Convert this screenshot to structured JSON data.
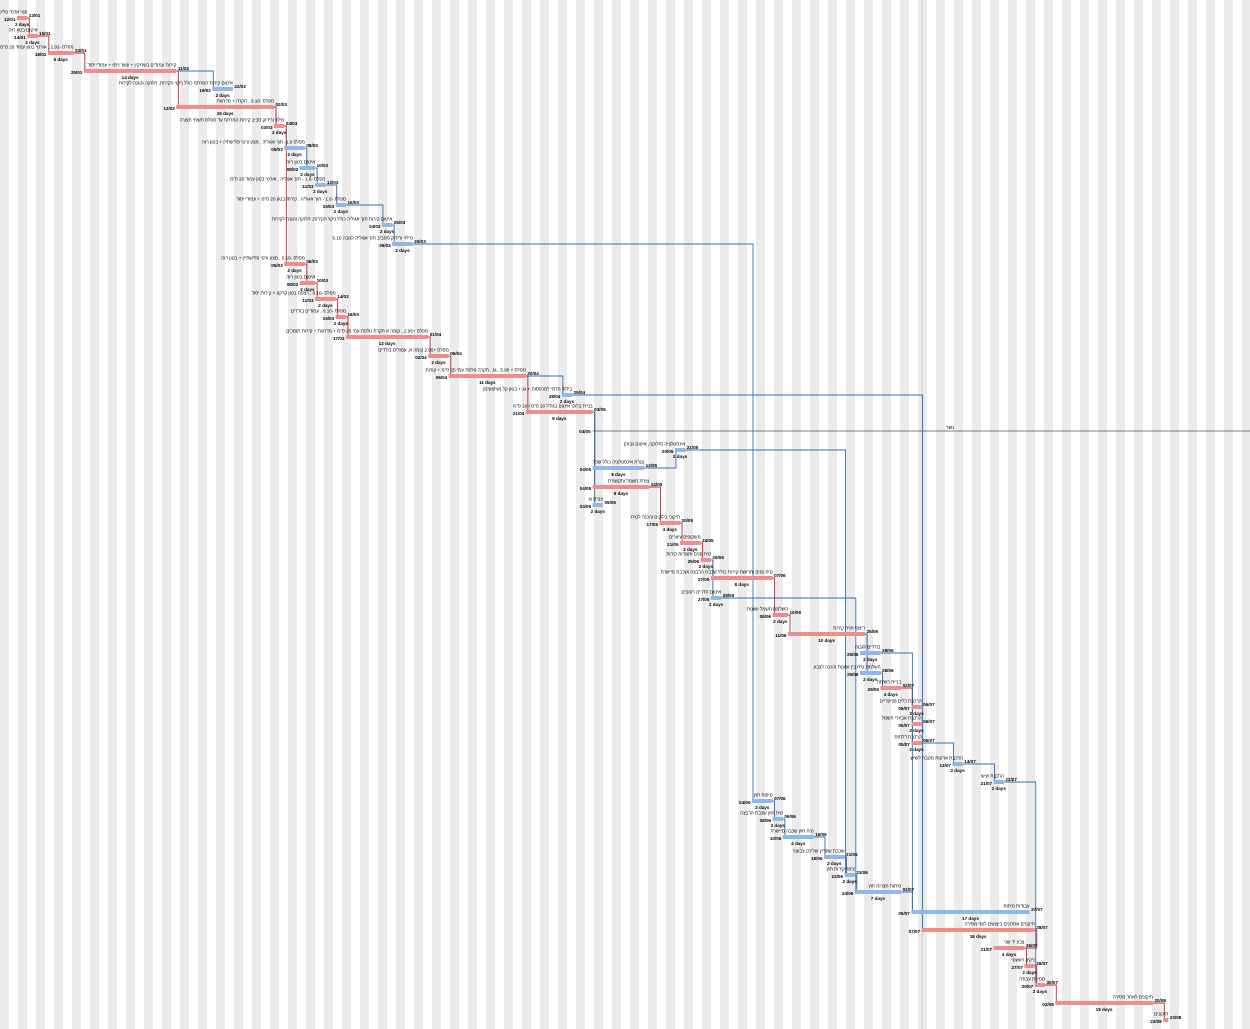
{
  "chart_data": {
    "type": "gantt",
    "colors": {
      "critical": "#f08c8c",
      "normal": "#8db8e8",
      "critical_link": "#c0282d",
      "normal_link": "#2d6db5",
      "stripe": "#ebebeb"
    },
    "milestone": {
      "label": "נשר",
      "date": "04/05"
    },
    "tasks": [
      {
        "name": "פנוי אדמי פלישתיין + בטון",
        "start": "12/01",
        "end": "13/01",
        "duration": "2 days",
        "critical": true
      },
      {
        "name": "איטום בטון רזה",
        "start": "14/01",
        "end": "15/01",
        "duration": "2 days",
        "critical": true
      },
      {
        "name": "מפלס -2.92 , אורטי בטון עמוד 20 ס\"מ",
        "start": "18/01",
        "end": "22/01",
        "duration": "5 days",
        "critical": true
      },
      {
        "name": "קירות עמודים בשרוקין + עשר ניסו + עמודי יסוד",
        "start": "25/01",
        "end": "11/02",
        "duration": "14 days",
        "critical": true
      },
      {
        "name": "איטום קירות המרתף כולל ניקוי הקירות, חלוקה והגנה לקירות",
        "start": "19/02",
        "end": "22/02",
        "duration": "2 days",
        "critical": false
      },
      {
        "name": "מפלס -0.10 , תקרה + מדרגות",
        "start": "12/02",
        "end": "02/03",
        "duration": "15 days",
        "critical": true
      },
      {
        "name": "מילוי ורידוק סביב קירות המרתף עד מפלס תשתי תצורה",
        "start": "03/03",
        "end": "04/03",
        "duration": "2 days",
        "critical": true
      },
      {
        "name": "מפלס 1.6- תוך אגוליה , מצע ורטי פלישתיין + בטון רזה",
        "start": "05/03",
        "end": "08/03",
        "duration": "2 days",
        "critical": false
      },
      {
        "name": "איטום בטון רזה",
        "start": "08/03",
        "end": "10/03",
        "duration": "2 days",
        "critical": false
      },
      {
        "name": "מפלס -1.6 - תוך אגוליה , אורטי בטון עמוד 20 ס\"מ",
        "start": "11/03",
        "end": "12/03",
        "duration": "2 days",
        "critical": false
      },
      {
        "name": "מפלס -1.6 - תוך אגוליה , קירות בטון 20 ס\"מ + עמודי יסוד",
        "start": "15/03",
        "end": "16/03",
        "duration": "2 days",
        "critical": false
      },
      {
        "name": "איטום קירות תוך אגוליה כולל ניקוי הקירות, חלוקה והגנה לקירות",
        "start": "24/03",
        "end": "25/03",
        "duration": "2 days",
        "critical": false
      },
      {
        "name": "מילוי ורידוק מסביב תוך אגוליה לגובה 0.10",
        "start": "26/03",
        "end": "29/03",
        "duration": "2 days",
        "critical": false
      },
      {
        "name": "מפלס -0.10 , מצע ורטי פלישתיין + בטון רזה",
        "start": "05/03",
        "end": "08/03",
        "duration": "2 days",
        "critical": true
      },
      {
        "name": "איטום בטון רזה",
        "start": "08/03",
        "end": "10/03",
        "duration": "2 days",
        "critical": true
      },
      {
        "name": "מפלס -0.10 , רצפת בטון קרקע + קירות יסוד",
        "start": "11/03",
        "end": "14/03",
        "duration": "2 days",
        "critical": true
      },
      {
        "name": "מפלס -0.10 , עמודים בודדים",
        "start": "15/03",
        "end": "16/03",
        "duration": "2 days",
        "critical": true
      },
      {
        "name": "מפלס +2.95 , קומה א תקרת טלפת עמי 25 ס\"מ + מדרגות + קירות תומכים",
        "start": "17/03",
        "end": "01/04",
        "duration": "12 days",
        "critical": true
      },
      {
        "name": "מפלס +2.95 קומה א, עמודים בודדים",
        "start": "02/04",
        "end": "05/04",
        "duration": "2 days",
        "critical": true
      },
      {
        "name": "מפלס + 5.95 , גג , תקרה טלפת עמי 25 ס\"מ + קורות",
        "start": "06/04",
        "end": "20/04",
        "duration": "11 days",
        "critical": true
      },
      {
        "name": "בידוד תרמי למרפסות + גג + בטון קל (שיפועים)",
        "start": "28/04",
        "end": "29/04",
        "duration": "2 days",
        "critical": false
      },
      {
        "name": "בניית בלוקי איטום בגודל 20 ס\"מ ו 10 ס\"מ",
        "start": "21/04",
        "end": "03/05",
        "duration": "9 days",
        "critical": true
      },
      {
        "name": "אינסטלציה (חלוקה, איטום גבוה)",
        "start": "20/05",
        "end": "21/05",
        "duration": "2 days",
        "critical": false
      },
      {
        "name": "צנרת אינסטלציה כולל שכל",
        "start": "04/05",
        "end": "13/05",
        "duration": "8 days",
        "critical": false
      },
      {
        "name": "צנרת חשמל ותקשורת",
        "start": "04/05",
        "end": "14/05",
        "duration": "9 days",
        "critical": true
      },
      {
        "name": "צנרת גז",
        "start": "04/05",
        "end": "05/05",
        "duration": "2 days",
        "critical": false
      },
      {
        "name": "תיקוני בלוקים והכנה לטיח",
        "start": "17/05",
        "end": "20/05",
        "duration": "4 days",
        "critical": true
      },
      {
        "name": "משקופים עיוורים",
        "start": "21/05",
        "end": "24/05",
        "duration": "2 days",
        "critical": true
      },
      {
        "name": "טיח פנים וחגורות קירות",
        "start": "25/05",
        "end": "26/05",
        "duration": "2 days",
        "critical": true
      },
      {
        "name": "טיח פנים וחרושת קירות כולל שכבת הרבצה ושכבת מיישרת",
        "start": "27/05",
        "end": "07/06",
        "duration": "8 days",
        "critical": true
      },
      {
        "name": "איטום חדרים רטובים",
        "start": "27/05",
        "end": "28/05",
        "duration": "2 days",
        "critical": false
      },
      {
        "name": "השלמת חשמל ושונות",
        "start": "08/06",
        "end": "10/06",
        "duration": "2 days",
        "critical": true
      },
      {
        "name": "ריצוף וטיח קירות",
        "start": "11/06",
        "end": "25/06",
        "duration": "10 days",
        "critical": true
      },
      {
        "name": "בודדים לגבוה",
        "start": "25/06",
        "end": "28/06",
        "duration": "2 days",
        "critical": false
      },
      {
        "name": "השלמת טיח בין ושונות והכנה לצבע",
        "start": "25/06",
        "end": "28/06",
        "duration": "2 days",
        "critical": false
      },
      {
        "name": "בניית רשימה",
        "start": "29/06",
        "end": "02/07",
        "duration": "4 days",
        "critical": true
      },
      {
        "name": "הרכבת כלים סניטריים",
        "start": "05/07",
        "end": "06/07",
        "duration": "2 days",
        "critical": true
      },
      {
        "name": "הרכבת אביזרי חשמל",
        "start": "05/07",
        "end": "06/07",
        "duration": "2 days",
        "critical": true
      },
      {
        "name": "הרכבת דלתות",
        "start": "05/07",
        "end": "06/07",
        "duration": "2 days",
        "critical": true
      },
      {
        "name": "הרכבת ארונות מטבח לשיש",
        "start": "13/07",
        "end": "14/07",
        "duration": "2 days",
        "critical": false
      },
      {
        "name": "הרכבת שיש",
        "start": "21/07",
        "end": "22/07",
        "duration": "2 days",
        "critical": false
      },
      {
        "name": "טיפוח חוץ",
        "start": "04/06",
        "end": "07/06",
        "duration": "2 days",
        "critical": false
      },
      {
        "name": "טיח חוץ שכבת הרבצה",
        "start": "08/06",
        "end": "09/06",
        "duration": "2 days",
        "critical": false
      },
      {
        "name": "טיח חוץ שכבה מיישרת",
        "start": "10/06",
        "end": "15/06",
        "duration": "4 days",
        "critical": false
      },
      {
        "name": "שכבת שפריץ שליכט צבעוני",
        "start": "18/06",
        "end": "21/06",
        "duration": "2 days",
        "critical": false
      },
      {
        "name": "ציפוי קירות חוץ",
        "start": "22/06",
        "end": "23/06",
        "duration": "2 days",
        "critical": false
      },
      {
        "name": "פיתוח חצרות חוץ",
        "start": "24/06",
        "end": "02/07",
        "duration": "7 days",
        "critical": false
      },
      {
        "name": "עבודות פיתוח",
        "start": "05/07",
        "end": "27/07",
        "duration": "17 days",
        "critical": false
      },
      {
        "name": "תיקונים אחרונים ביצועים לפני מסירה",
        "start": "07/07",
        "end": "28/07",
        "duration": "16 days",
        "critical": true
      },
      {
        "name": "צבע יד שני",
        "start": "21/07",
        "end": "26/07",
        "duration": "4 days",
        "critical": true
      },
      {
        "name": "ניקיון ראשוני",
        "start": "27/07",
        "end": "28/07",
        "duration": "2 days",
        "critical": true
      },
      {
        "name": "מסירת עבודה",
        "start": "29/07",
        "end": "30/07",
        "duration": "2 days",
        "critical": true
      },
      {
        "name": "תיקונים לאחר מסירה",
        "start": "02/08",
        "end": "20/08",
        "duration": "15 days",
        "critical": true
      },
      {
        "name": "תיקונים",
        "start": "23/08",
        "end": "23/08",
        "duration": "",
        "critical": true
      }
    ],
    "links": [
      [
        0,
        1
      ],
      [
        1,
        2
      ],
      [
        2,
        3
      ],
      [
        3,
        4
      ],
      [
        3,
        5
      ],
      [
        5,
        6
      ],
      [
        6,
        7
      ],
      [
        7,
        8
      ],
      [
        8,
        9
      ],
      [
        9,
        10
      ],
      [
        10,
        11
      ],
      [
        11,
        12
      ],
      [
        6,
        13
      ],
      [
        13,
        14
      ],
      [
        14,
        15
      ],
      [
        15,
        16
      ],
      [
        16,
        17
      ],
      [
        17,
        18
      ],
      [
        18,
        19
      ],
      [
        19,
        20
      ],
      [
        19,
        21
      ],
      [
        21,
        23
      ],
      [
        21,
        24
      ],
      [
        21,
        25
      ],
      [
        23,
        22
      ],
      [
        24,
        26
      ],
      [
        26,
        27
      ],
      [
        27,
        28
      ],
      [
        28,
        29
      ],
      [
        28,
        30
      ],
      [
        29,
        31
      ],
      [
        31,
        32
      ],
      [
        32,
        33
      ],
      [
        32,
        34
      ],
      [
        34,
        35
      ],
      [
        35,
        36
      ],
      [
        35,
        37
      ],
      [
        35,
        38
      ],
      [
        38,
        39
      ],
      [
        39,
        40
      ],
      [
        12,
        41
      ],
      [
        41,
        42
      ],
      [
        42,
        43
      ],
      [
        43,
        44
      ],
      [
        44,
        45
      ],
      [
        45,
        46
      ],
      [
        46,
        47
      ],
      [
        20,
        48
      ],
      [
        48,
        49
      ],
      [
        49,
        50
      ],
      [
        50,
        51
      ],
      [
        51,
        52
      ],
      [
        52,
        53
      ],
      [
        22,
        45
      ],
      [
        30,
        46
      ],
      [
        33,
        47
      ],
      [
        40,
        51
      ]
    ]
  }
}
